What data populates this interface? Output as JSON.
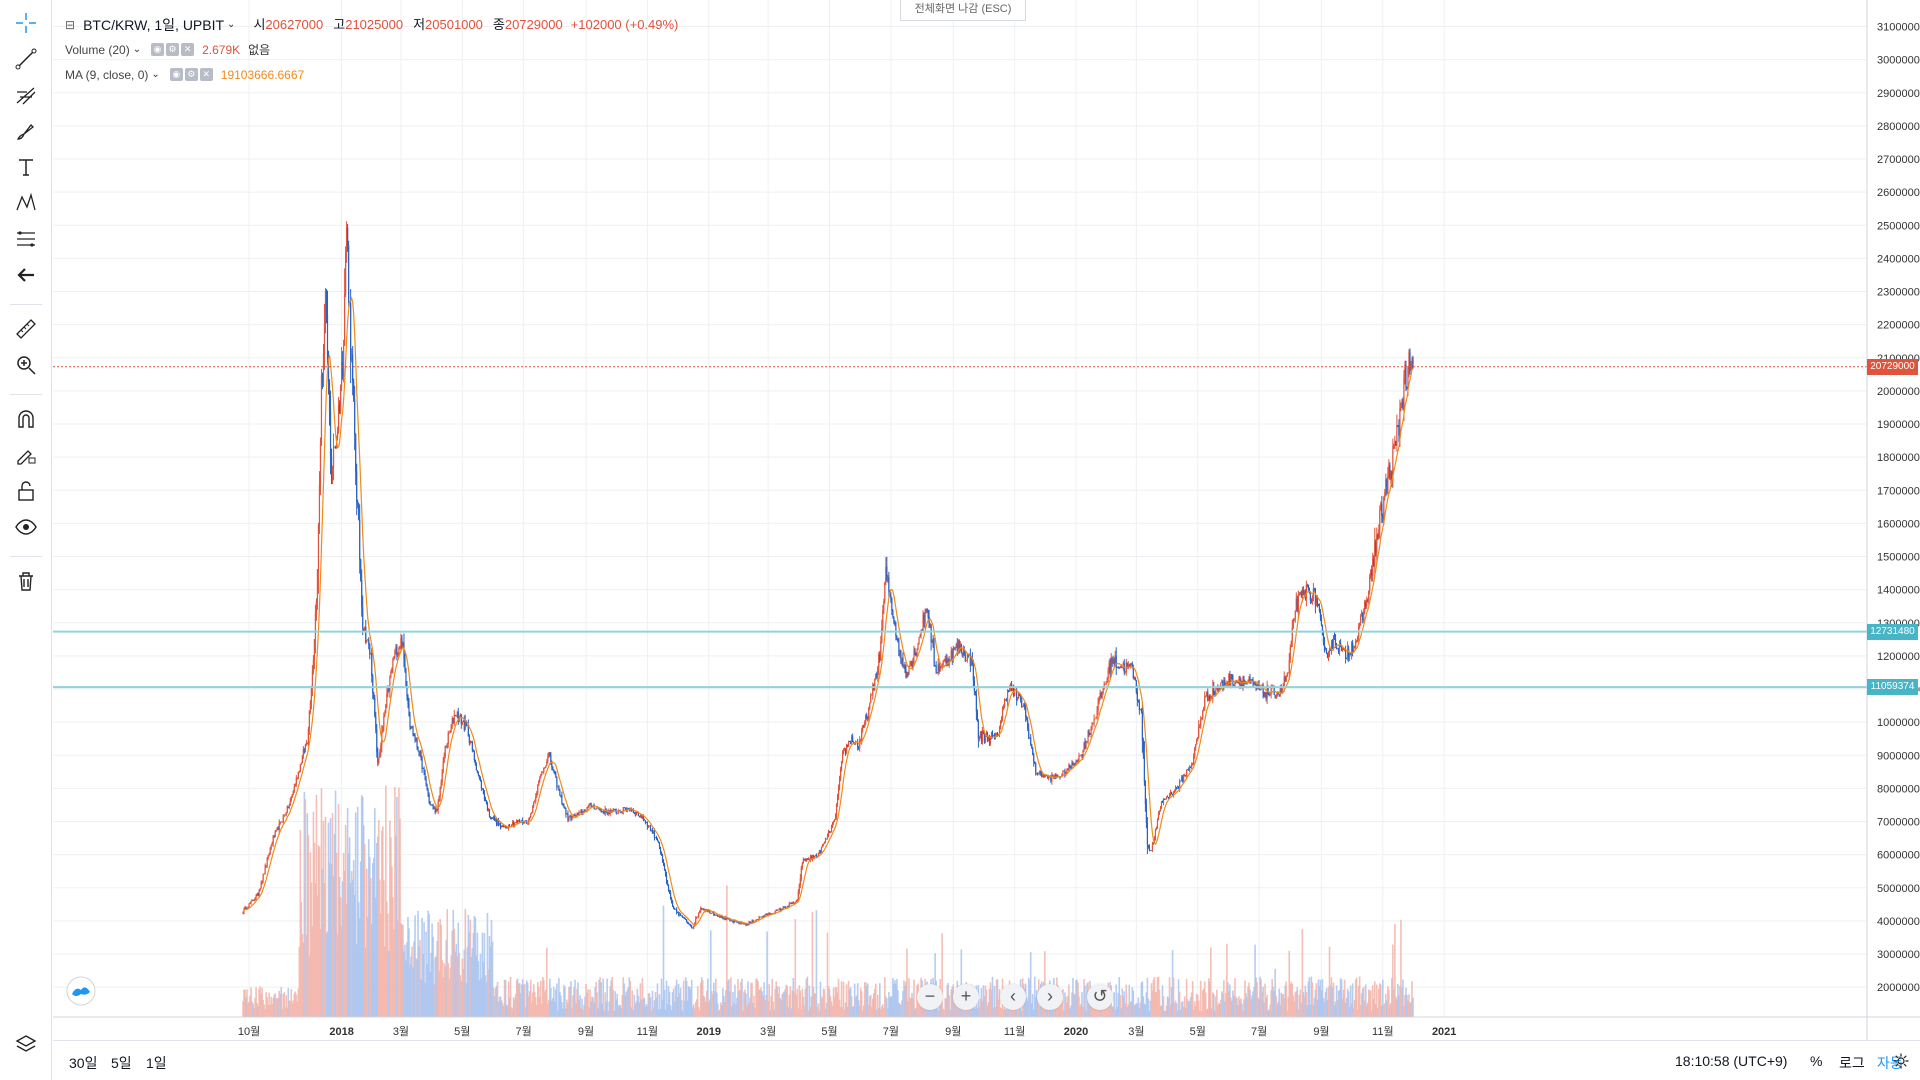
{
  "symbol": {
    "title": "BTC/KRW, 1일, UPBIT",
    "open_label": "시",
    "open": "20627000",
    "high_label": "고",
    "high": "21025000",
    "low_label": "저",
    "low": "20501000",
    "close_label": "종",
    "close": "20729000",
    "change": "+102000 (+0.49%)"
  },
  "indicators": {
    "volume": {
      "name": "Volume (20)",
      "value": "2.679K",
      "extra": "없음"
    },
    "ma": {
      "name": "MA (9, close, 0)",
      "value": "19103666.6667"
    }
  },
  "esc_hint": "전체화면 나감 (ESC)",
  "bottom": {
    "ranges": [
      "30일",
      "5일",
      "1일"
    ],
    "clock": "18:10:58 (UTC+9)",
    "percent": "%",
    "log": "로그",
    "auto": "자동"
  },
  "price_tags": {
    "last": "20729000",
    "level_1": "12731480",
    "level_2": "11059374"
  },
  "colors": {
    "up": "#e0533c",
    "down": "#2962c4",
    "ma": "#f08a1a",
    "hline_last": "#e0533c",
    "hline_level": "#8fd3dd",
    "tag_level": "#47b5c6"
  },
  "chart_data": {
    "type": "candlestick",
    "title": "",
    "price_axis": {
      "ticks": [
        2000000,
        3000000,
        4000000,
        5000000,
        6000000,
        7000000,
        8000000,
        9000000,
        10000000,
        11000000,
        12000000,
        13000000,
        14000000,
        15000000,
        16000000,
        17000000,
        18000000,
        19000000,
        20000000,
        21000000,
        22000000,
        23000000,
        24000000,
        25000000,
        26000000,
        27000000,
        28000000,
        29000000,
        30000000,
        31000000
      ],
      "ylim": [
        1100000,
        31800000
      ]
    },
    "time_axis": {
      "labels": [
        "10월",
        "2018",
        "3월",
        "5월",
        "7월",
        "9월",
        "11월",
        "2019",
        "3월",
        "5월",
        "7월",
        "9월",
        "11월",
        "2020",
        "3월",
        "5월",
        "7월",
        "9월",
        "11월",
        "2021"
      ]
    },
    "price_path": {
      "dates": [
        "2017-09-25",
        "2017-10-10",
        "2017-10-25",
        "2017-11-10",
        "2017-11-20",
        "2017-11-28",
        "2017-12-04",
        "2017-12-08",
        "2017-12-12",
        "2017-12-16",
        "2017-12-22",
        "2017-12-28",
        "2018-01-02",
        "2018-01-06",
        "2018-01-10",
        "2018-01-16",
        "2018-01-22",
        "2018-01-30",
        "2018-02-06",
        "2018-02-14",
        "2018-02-22",
        "2018-03-02",
        "2018-03-10",
        "2018-03-20",
        "2018-03-30",
        "2018-04-06",
        "2018-04-14",
        "2018-04-24",
        "2018-05-06",
        "2018-05-16",
        "2018-05-28",
        "2018-06-10",
        "2018-06-24",
        "2018-07-06",
        "2018-07-18",
        "2018-07-26",
        "2018-08-06",
        "2018-08-14",
        "2018-08-24",
        "2018-09-06",
        "2018-09-18",
        "2018-10-01",
        "2018-10-14",
        "2018-10-28",
        "2018-11-12",
        "2018-11-20",
        "2018-11-26",
        "2018-12-06",
        "2018-12-16",
        "2018-12-24",
        "2019-01-08",
        "2019-01-22",
        "2019-02-08",
        "2019-02-20",
        "2019-03-10",
        "2019-03-30",
        "2019-04-04",
        "2019-04-20",
        "2019-05-06",
        "2019-05-14",
        "2019-05-22",
        "2019-05-30",
        "2019-06-10",
        "2019-06-20",
        "2019-06-26",
        "2019-07-02",
        "2019-07-10",
        "2019-07-16",
        "2019-07-26",
        "2019-08-06",
        "2019-08-14",
        "2019-08-24",
        "2019-09-06",
        "2019-09-20",
        "2019-09-26",
        "2019-10-14",
        "2019-10-26",
        "2019-11-10",
        "2019-11-22",
        "2019-12-06",
        "2019-12-18",
        "2020-01-06",
        "2020-01-20",
        "2020-02-06",
        "2020-02-14",
        "2020-02-26",
        "2020-03-06",
        "2020-03-12",
        "2020-03-16",
        "2020-03-26",
        "2020-04-10",
        "2020-04-26",
        "2020-05-08",
        "2020-05-20",
        "2020-06-02",
        "2020-06-20",
        "2020-07-06",
        "2020-07-22",
        "2020-07-30",
        "2020-08-06",
        "2020-08-18",
        "2020-08-28",
        "2020-09-04",
        "2020-09-14",
        "2020-09-24",
        "2020-10-06",
        "2020-10-16",
        "2020-10-26",
        "2020-11-04",
        "2020-11-14",
        "2020-11-22",
        "2020-11-26",
        "2020-12-01"
      ],
      "close": [
        4300000,
        4800000,
        6500000,
        7500000,
        8600000,
        9500000,
        12000000,
        14500000,
        20000000,
        22500000,
        17500000,
        19000000,
        21000000,
        25000000,
        21500000,
        17000000,
        13000000,
        12000000,
        8700000,
        10500000,
        12000000,
        12500000,
        10000000,
        9000000,
        7500000,
        7300000,
        9200000,
        10300000,
        9800000,
        8500000,
        7200000,
        6800000,
        7000000,
        7000000,
        8400000,
        9000000,
        7800000,
        7100000,
        7200000,
        7500000,
        7300000,
        7300000,
        7400000,
        7100000,
        6400000,
        5200000,
        4400000,
        4100000,
        3800000,
        4400000,
        4200000,
        4000000,
        3900000,
        4100000,
        4300000,
        4600000,
        5800000,
        6000000,
        7000000,
        9000000,
        9500000,
        9300000,
        10500000,
        12000000,
        14500000,
        13500000,
        12000000,
        11500000,
        12200000,
        13500000,
        11600000,
        11800000,
        12300000,
        11800000,
        9600000,
        9500000,
        11100000,
        10500000,
        8500000,
        8300000,
        8400000,
        9000000,
        10200000,
        11900000,
        11700000,
        11600000,
        10200000,
        6300000,
        6100000,
        7600000,
        8000000,
        8800000,
        10700000,
        11000000,
        11300000,
        11200000,
        10900000,
        10900000,
        11500000,
        13500000,
        14000000,
        13700000,
        12000000,
        12500000,
        12000000,
        12500000,
        13700000,
        15500000,
        17000000,
        18300000,
        20300000,
        20500000,
        20729000
      ]
    },
    "volume_ylim": [
      0,
      7500
    ]
  }
}
